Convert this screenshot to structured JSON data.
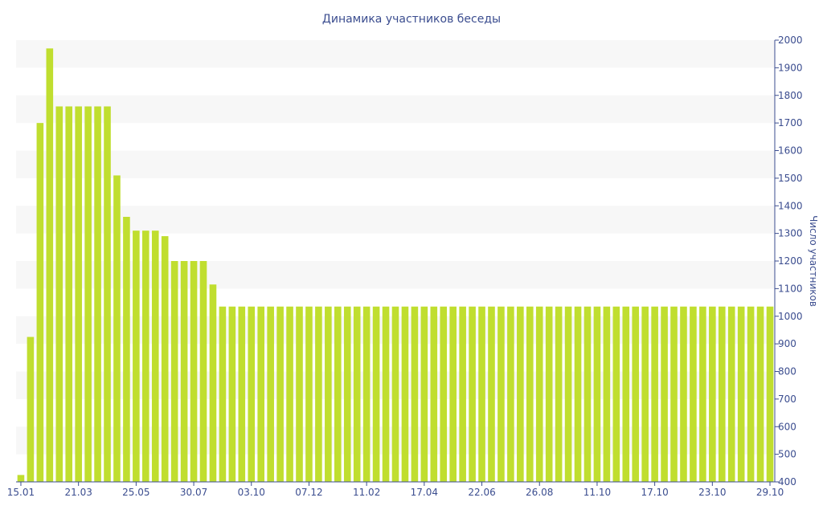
{
  "chart_data": {
    "type": "bar",
    "title": "Динамика участников беседы",
    "xlabel": "",
    "ylabel": "Число участников",
    "ylim": [
      400,
      2000
    ],
    "yticks": [
      400,
      500,
      600,
      700,
      800,
      900,
      1000,
      1100,
      1200,
      1300,
      1400,
      1500,
      1600,
      1700,
      1800,
      1900,
      2000
    ],
    "xtick_labels": [
      {
        "index": 0,
        "label": "15.01"
      },
      {
        "index": 6,
        "label": "21.03"
      },
      {
        "index": 12,
        "label": "25.05"
      },
      {
        "index": 18,
        "label": "30.07"
      },
      {
        "index": 24,
        "label": "03.10"
      },
      {
        "index": 30,
        "label": "07.12"
      },
      {
        "index": 36,
        "label": "11.02"
      },
      {
        "index": 42,
        "label": "17.04"
      },
      {
        "index": 48,
        "label": "22.06"
      },
      {
        "index": 54,
        "label": "26.08"
      },
      {
        "index": 60,
        "label": "11.10"
      },
      {
        "index": 66,
        "label": "17.10"
      },
      {
        "index": 72,
        "label": "23.10"
      },
      {
        "index": 78,
        "label": "29.10"
      }
    ],
    "values": [
      425,
      925,
      1700,
      1970,
      1760,
      1760,
      1760,
      1760,
      1760,
      1760,
      1510,
      1360,
      1310,
      1310,
      1310,
      1290,
      1200,
      1200,
      1200,
      1200,
      1115,
      1035,
      1035,
      1035,
      1035,
      1035,
      1035,
      1035,
      1035,
      1035,
      1035,
      1035,
      1035,
      1035,
      1035,
      1035,
      1035,
      1035,
      1035,
      1035,
      1035,
      1035,
      1035,
      1035,
      1035,
      1035,
      1035,
      1035,
      1035,
      1035,
      1035,
      1035,
      1035,
      1035,
      1035,
      1035,
      1035,
      1035,
      1035,
      1035,
      1035,
      1035,
      1035,
      1035,
      1035,
      1035,
      1035,
      1035,
      1035,
      1035,
      1035,
      1035,
      1035,
      1035,
      1035,
      1035,
      1035,
      1035,
      1035
    ],
    "grid": true,
    "legend": "none",
    "colors": {
      "bar": "#c0de2f",
      "band": "#f7f7f7",
      "text": "#3b4d8f",
      "axis": "#3b4d8f"
    }
  }
}
